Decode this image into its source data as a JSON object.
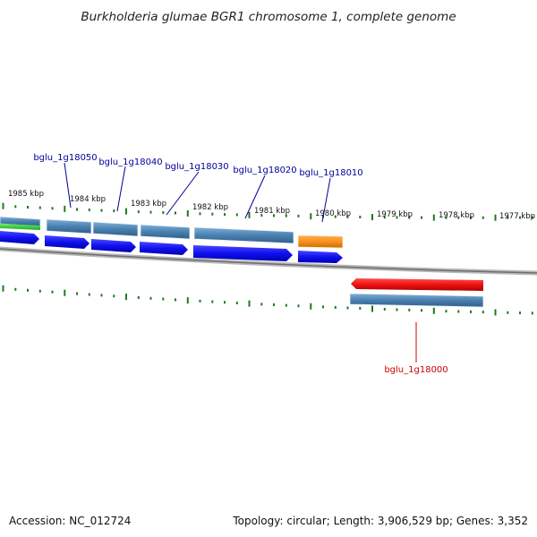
{
  "title": "Burkholderia glumae BGR1 chromosome 1, complete genome",
  "footer": {
    "accession": "Accession: NC_012724",
    "summary": "Topology: circular; Length: 3,906,529 bp; Genes: 3,352"
  },
  "scale_labels": [
    "1985 kbp",
    "1984 kbp",
    "1983 kbp",
    "1982 kbp",
    "1981 kbp",
    "1980 kbp",
    "1979 kbp",
    "1978 kbp",
    "1977 kbp"
  ],
  "genes": [
    {
      "label": "bglu_1g18050",
      "strand": "+"
    },
    {
      "label": "bglu_1g18040",
      "strand": "+"
    },
    {
      "label": "bglu_1g18030",
      "strand": "+"
    },
    {
      "label": "bglu_1g18020",
      "strand": "+"
    },
    {
      "label": "bglu_1g18010",
      "strand": "+"
    },
    {
      "label": "bglu_1g18000",
      "strand": "-"
    }
  ],
  "colors": {
    "cds": "#1010ee",
    "gene_bar": "#4a80b0",
    "rna": "#f7901e",
    "highlight_gene": "#ee1111",
    "tick": "#1d7a1d",
    "backbone": "#8a8a8a",
    "label_plus": "#000099",
    "label_minus": "#cc0000",
    "misc": "#33cc33"
  }
}
